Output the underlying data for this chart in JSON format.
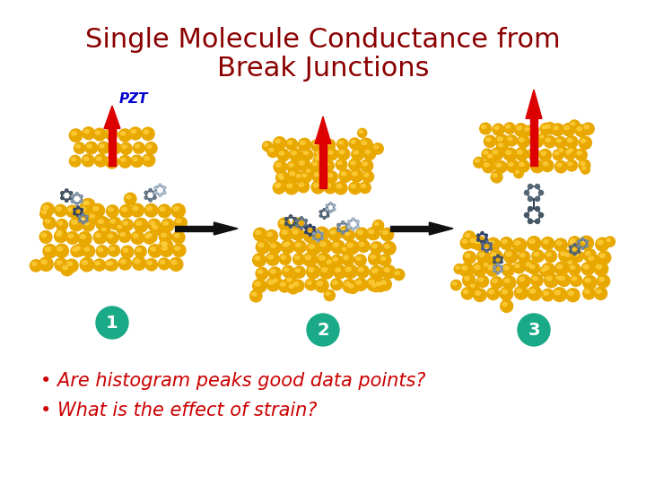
{
  "title_line1": "Single Molecule Conductance from",
  "title_line2": "Break Junctions",
  "title_color": "#8B0000",
  "title_fontsize": 22,
  "pzt_label": "PZT",
  "pzt_color": "#0000CC",
  "pzt_fontsize": 11,
  "bullet1": "Are histogram peaks good data points?",
  "bullet2": "What is the effect of strain?",
  "bullet_color": "#CC0000",
  "bullet_fontsize": 15,
  "number_labels": [
    "1",
    "2",
    "3"
  ],
  "number_bg_color": "#1aaa88",
  "number_text_color": "white",
  "number_fontsize": 14,
  "arrow_color": "#DD0000",
  "black_arrow_color": "#111111",
  "gold_color": "#E8A800",
  "gold_highlight": "#FFD040",
  "gold_shadow": "#C07800",
  "mol_dark": "#445566",
  "mol_mid": "#778899",
  "mol_light": "#99AABB",
  "mol_blue": "#334488",
  "background_color": "#FFFFFF",
  "fig_width": 7.2,
  "fig_height": 5.4,
  "dpi": 100
}
